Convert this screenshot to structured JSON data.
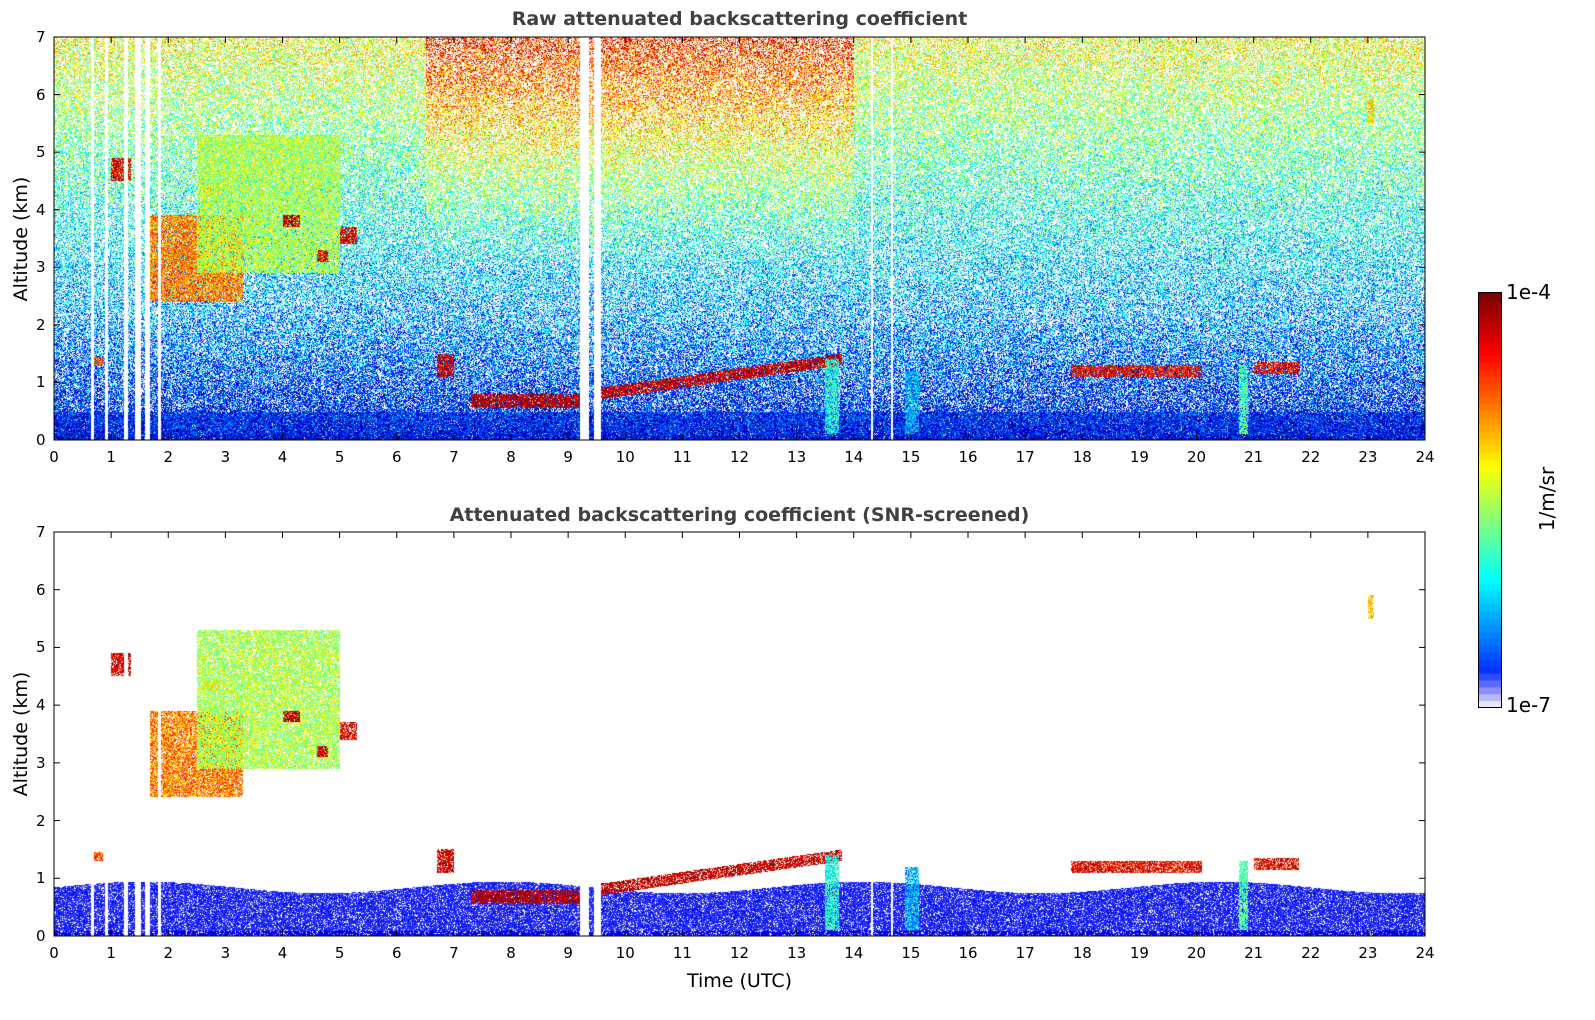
{
  "chart_data": [
    {
      "type": "heatmap",
      "title": "Raw attenuated backscattering coefficient",
      "xlabel": "",
      "ylabel": "Altitude (km)",
      "xlim": [
        0,
        24
      ],
      "ylim": [
        0,
        7
      ],
      "xticks": [
        0,
        1,
        2,
        3,
        4,
        5,
        6,
        7,
        8,
        9,
        10,
        11,
        12,
        13,
        14,
        15,
        16,
        17,
        18,
        19,
        20,
        21,
        22,
        23,
        24
      ],
      "yticks": [
        0,
        1,
        2,
        3,
        4,
        5,
        6,
        7
      ],
      "screened": false
    },
    {
      "type": "heatmap",
      "title": "Attenuated backscattering coefficient (SNR-screened)",
      "xlabel": "Time (UTC)",
      "ylabel": "Altitude (km)",
      "xlim": [
        0,
        24
      ],
      "ylim": [
        0,
        7
      ],
      "xticks": [
        0,
        1,
        2,
        3,
        4,
        5,
        6,
        7,
        8,
        9,
        10,
        11,
        12,
        13,
        14,
        15,
        16,
        17,
        18,
        19,
        20,
        21,
        22,
        23,
        24
      ],
      "yticks": [
        0,
        1,
        2,
        3,
        4,
        5,
        6,
        7
      ],
      "screened": true
    }
  ],
  "features": [
    {
      "t0": 1.0,
      "t1": 1.35,
      "z0": 4.5,
      "z1": 4.9,
      "level": 0.92
    },
    {
      "t0": 1.6,
      "t1": 3.3,
      "z0": 2.4,
      "z1": 3.9,
      "level": 0.75
    },
    {
      "t0": 2.5,
      "t1": 5.0,
      "z0": 2.9,
      "z1": 5.3,
      "level": 0.55
    },
    {
      "t0": 2.6,
      "t1": 2.9,
      "z0": 4.25,
      "z1": 4.4,
      "level": 0.6
    },
    {
      "t0": 4.0,
      "t1": 4.3,
      "z0": 3.7,
      "z1": 3.9,
      "level": 0.95
    },
    {
      "t0": 4.6,
      "t1": 4.8,
      "z0": 3.1,
      "z1": 3.3,
      "level": 0.9
    },
    {
      "t0": 5.0,
      "t1": 5.3,
      "z0": 3.4,
      "z1": 3.7,
      "level": 0.9
    },
    {
      "t0": 0.7,
      "t1": 0.85,
      "z0": 1.3,
      "z1": 1.45,
      "level": 0.8
    },
    {
      "t0": 6.7,
      "t1": 7.0,
      "z0": 1.1,
      "z1": 1.5,
      "level": 0.93
    },
    {
      "t0": 7.3,
      "t1": 9.2,
      "z0": 0.55,
      "z1": 0.8,
      "level": 0.95
    },
    {
      "t0": 9.5,
      "t1": 13.8,
      "z0": 0.7,
      "z1": 1.55,
      "level": 0.93,
      "rising": true
    },
    {
      "t0": 17.8,
      "t1": 20.1,
      "z0": 1.1,
      "z1": 1.3,
      "level": 0.88
    },
    {
      "t0": 21.0,
      "t1": 21.8,
      "z0": 1.15,
      "z1": 1.35,
      "level": 0.88
    },
    {
      "t0": 20.75,
      "t1": 20.9,
      "z0": 0.1,
      "z1": 1.3,
      "level": 0.45
    },
    {
      "t0": 13.5,
      "t1": 13.75,
      "z0": 0.1,
      "z1": 1.4,
      "level": 0.4
    },
    {
      "t0": 14.9,
      "t1": 15.15,
      "z0": 0.1,
      "z1": 1.2,
      "level": 0.3
    },
    {
      "t0": 23.0,
      "t1": 23.1,
      "z0": 5.5,
      "z1": 5.9,
      "level": 0.65
    }
  ],
  "data_gaps": [
    [
      0.65,
      0.68
    ],
    [
      0.9,
      0.93
    ],
    [
      1.22,
      1.28
    ],
    [
      1.42,
      1.5
    ],
    [
      1.6,
      1.67
    ],
    [
      1.82,
      1.86
    ],
    [
      9.2,
      9.35
    ],
    [
      9.45,
      9.55
    ],
    [
      14.3,
      14.32
    ],
    [
      14.65,
      14.67
    ]
  ],
  "colorbar": {
    "min_label": "1e-7",
    "max_label": "1e-4",
    "label": "1/m/sr",
    "scale": "log",
    "colormap": "jet"
  },
  "colors": {
    "axis": "#000000",
    "title": "#404040"
  }
}
